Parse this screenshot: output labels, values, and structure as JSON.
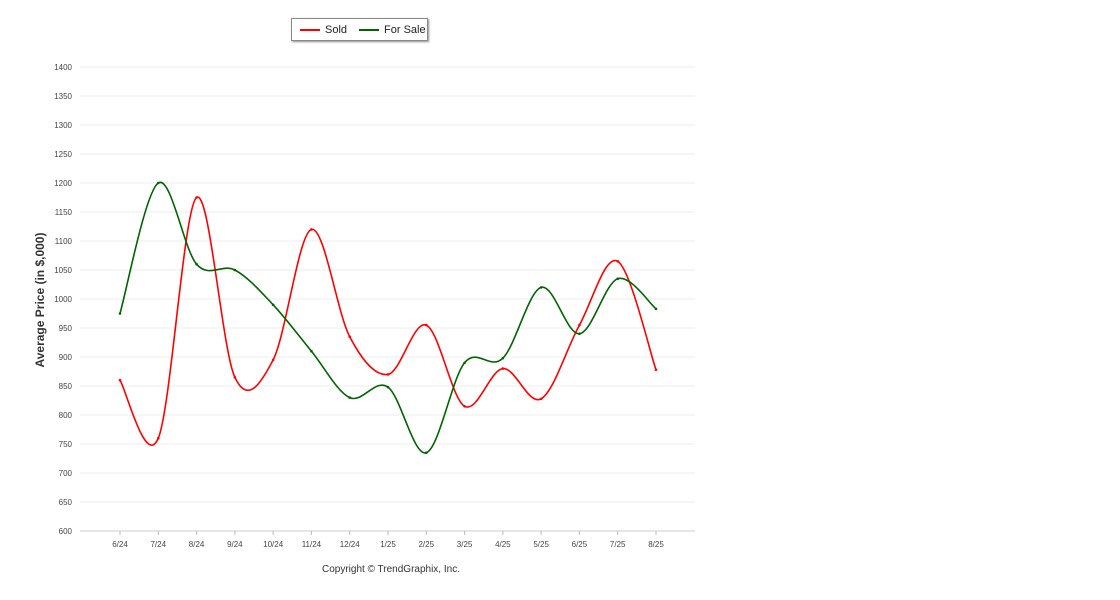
{
  "chart_data": {
    "type": "line",
    "categories": [
      "6/24",
      "7/24",
      "8/24",
      "9/24",
      "10/24",
      "11/24",
      "12/24",
      "1/25",
      "2/25",
      "3/25",
      "4/25",
      "5/25",
      "6/25",
      "7/25",
      "8/25"
    ],
    "series": [
      {
        "name": "Sold",
        "color": "#ff0000",
        "values": [
          860,
          760,
          1175,
          865,
          895,
          1120,
          935,
          870,
          955,
          815,
          880,
          828,
          955,
          1065,
          878
        ]
      },
      {
        "name": "For Sale",
        "color": "#006400",
        "values": [
          975,
          1200,
          1060,
          1050,
          990,
          910,
          830,
          848,
          735,
          890,
          898,
          1020,
          940,
          1035,
          983
        ]
      }
    ],
    "ylabel": "Average Price (in $,000)",
    "ylim": [
      600,
      1400
    ],
    "yticks": [
      "600",
      "650",
      "700",
      "750",
      "800",
      "850",
      "900",
      "950",
      "1000",
      "1050",
      "1100",
      "1150",
      "1200",
      "1250",
      "1300",
      "1350",
      "1400"
    ],
    "grid": true,
    "legend_position": "top"
  },
  "footer": {
    "copyright": "Copyright © TrendGraphix, Inc."
  }
}
